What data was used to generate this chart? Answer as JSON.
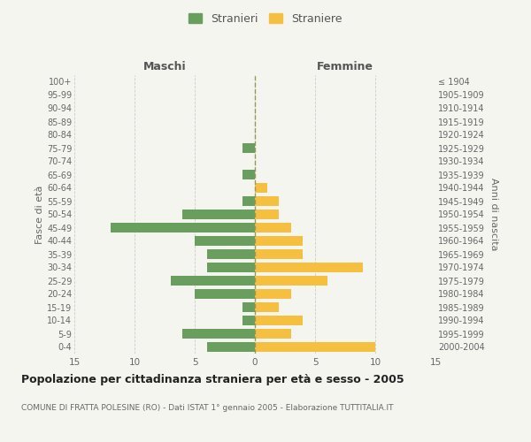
{
  "age_groups": [
    "0-4",
    "5-9",
    "10-14",
    "15-19",
    "20-24",
    "25-29",
    "30-34",
    "35-39",
    "40-44",
    "45-49",
    "50-54",
    "55-59",
    "60-64",
    "65-69",
    "70-74",
    "75-79",
    "80-84",
    "85-89",
    "90-94",
    "95-99",
    "100+"
  ],
  "birth_years": [
    "2000-2004",
    "1995-1999",
    "1990-1994",
    "1985-1989",
    "1980-1984",
    "1975-1979",
    "1970-1974",
    "1965-1969",
    "1960-1964",
    "1955-1959",
    "1950-1954",
    "1945-1949",
    "1940-1944",
    "1935-1939",
    "1930-1934",
    "1925-1929",
    "1920-1924",
    "1915-1919",
    "1910-1914",
    "1905-1909",
    "≤ 1904"
  ],
  "maschi": [
    4,
    6,
    1,
    1,
    5,
    7,
    4,
    4,
    5,
    12,
    6,
    1,
    0,
    1,
    0,
    1,
    0,
    0,
    0,
    0,
    0
  ],
  "femmine": [
    10,
    3,
    4,
    2,
    3,
    6,
    9,
    4,
    4,
    3,
    2,
    2,
    1,
    0,
    0,
    0,
    0,
    0,
    0,
    0,
    0
  ],
  "color_maschi": "#6a9e5e",
  "color_femmine": "#f5c040",
  "background_color": "#f5f5f0",
  "grid_color": "#cccccc",
  "title": "Popolazione per cittadinanza straniera per età e sesso - 2005",
  "subtitle": "COMUNE DI FRATTA POLESINE (RO) - Dati ISTAT 1° gennaio 2005 - Elaborazione TUTTITALIA.IT",
  "ylabel_left": "Fasce di età",
  "ylabel_right": "Anni di nascita",
  "xlabel_left": "Maschi",
  "xlabel_right": "Femmine",
  "legend_maschi": "Stranieri",
  "legend_femmine": "Straniere",
  "xlim": 15,
  "dashed_line_color": "#999955"
}
